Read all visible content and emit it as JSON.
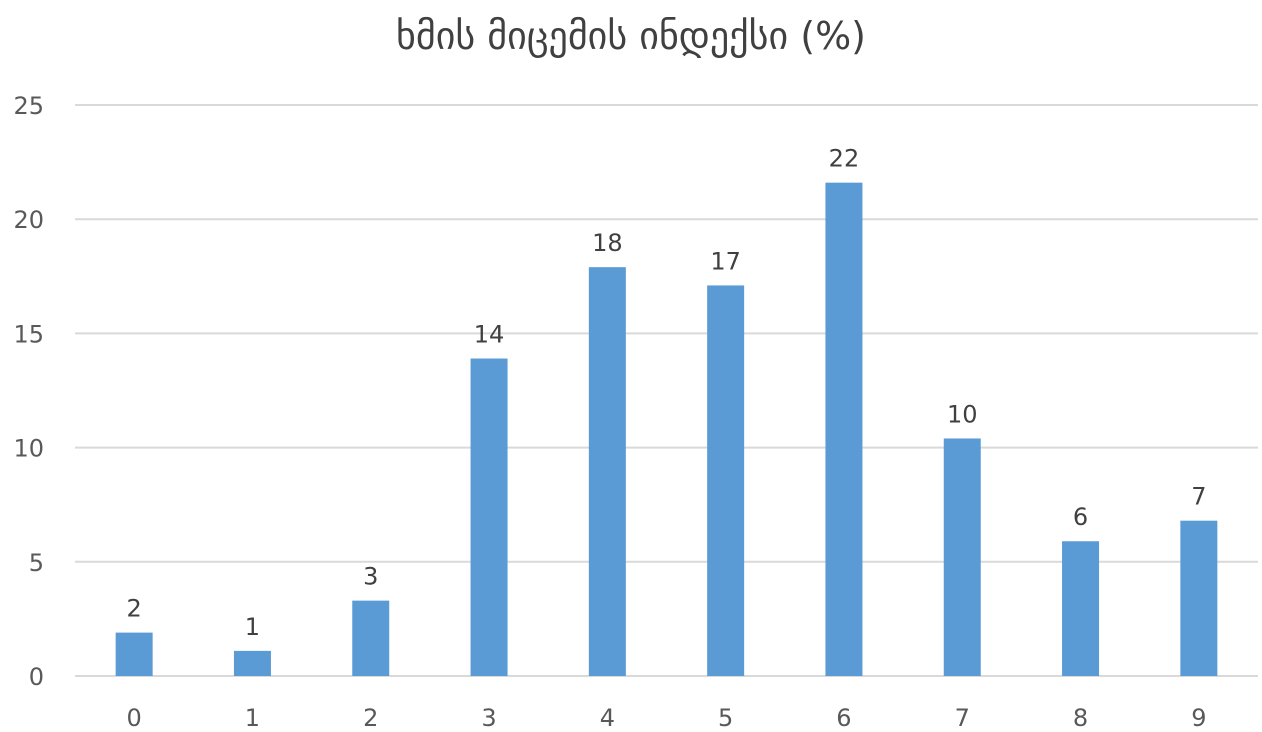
{
  "chart_data": {
    "type": "bar",
    "title": "ხმის მიცემის ინდექსი (%)",
    "xlabel": "",
    "ylabel": "",
    "categories": [
      "0",
      "1",
      "2",
      "3",
      "4",
      "5",
      "6",
      "7",
      "8",
      "9"
    ],
    "values": [
      1.9,
      1.1,
      3.3,
      13.9,
      17.9,
      17.1,
      21.6,
      10.4,
      5.9,
      6.8
    ],
    "data_labels": [
      "2",
      "1",
      "3",
      "14",
      "18",
      "17",
      "22",
      "10",
      "6",
      "7"
    ],
    "ylim": [
      0,
      25
    ],
    "yticks": [
      "0",
      "5",
      "10",
      "15",
      "20",
      "25"
    ],
    "grid": true,
    "legend": "none",
    "bar_color": "#5b9bd5"
  }
}
